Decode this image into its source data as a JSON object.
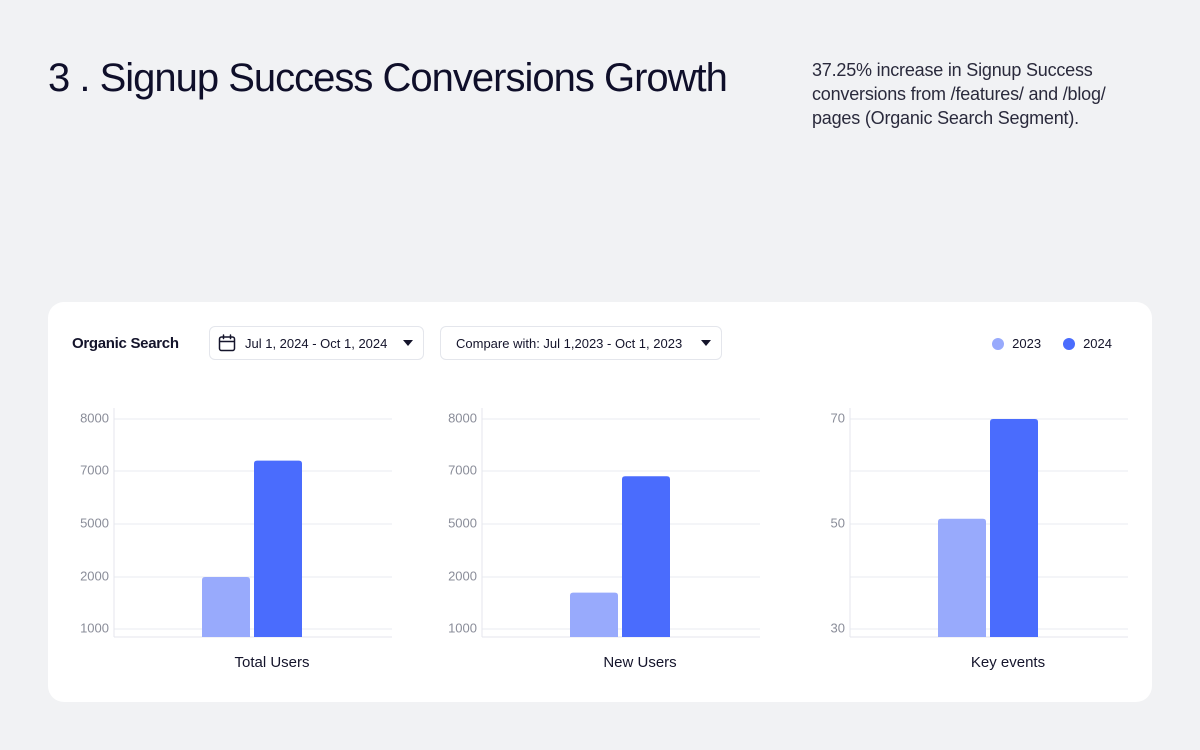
{
  "header": {
    "title": "3 . Signup Success Conversions Growth",
    "description": "37.25% increase in Signup Success conversions from /features/ and /blog/ pages (Organic Search Segment)."
  },
  "filters": {
    "segment": "Organic Search",
    "date_range": "Jul 1, 2024 - Oct 1, 2024",
    "compare": "Compare with: Jul 1,2023 - Oct 1, 2023"
  },
  "legend": [
    {
      "label": "2023",
      "color": "#98aafc"
    },
    {
      "label": "2024",
      "color": "#4a6cfd"
    }
  ],
  "icons": {
    "calendar": "calendar-icon",
    "dropdown": "chevron-down-icon"
  },
  "chart_data": [
    {
      "type": "bar",
      "xlabel": "Total Users",
      "y_ticks": [
        "1000",
        "2000",
        "5000",
        "7000",
        "8000"
      ],
      "series": [
        {
          "name": "2023",
          "values": [
            2000
          ]
        },
        {
          "name": "2024",
          "values": [
            7200
          ]
        }
      ],
      "grid": true
    },
    {
      "type": "bar",
      "xlabel": "New Users",
      "y_ticks": [
        "1000",
        "2000",
        "5000",
        "7000",
        "8000"
      ],
      "series": [
        {
          "name": "2023",
          "values": [
            1700
          ]
        },
        {
          "name": "2024",
          "values": [
            6800
          ]
        }
      ],
      "grid": true
    },
    {
      "type": "bar",
      "xlabel": "Key events",
      "y_ticks": [
        "30",
        "",
        "50",
        "",
        "70"
      ],
      "series": [
        {
          "name": "2023",
          "values": [
            51
          ]
        },
        {
          "name": "2024",
          "values": [
            70
          ]
        }
      ],
      "grid": true
    }
  ]
}
